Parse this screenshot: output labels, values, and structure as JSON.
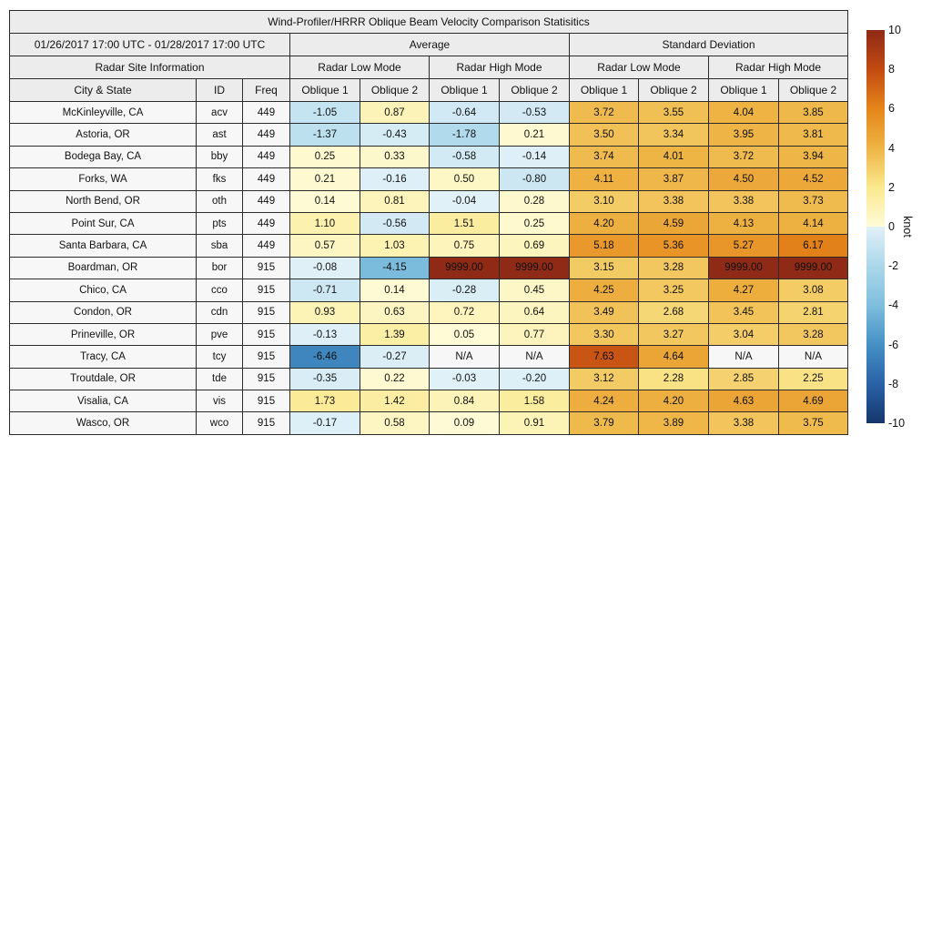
{
  "title": "Wind-Profiler/HRRR Oblique Beam Velocity Comparison Statisitics",
  "header": {
    "date_range": "01/26/2017 17:00 UTC - 01/28/2017 17:00 UTC",
    "group_average": "Average",
    "group_std": "Standard Deviation",
    "site_info": "Radar Site Information",
    "modes": [
      "Radar Low Mode",
      "Radar High Mode",
      "Radar Low Mode",
      "Radar High Mode"
    ],
    "col_headers": [
      "City & State",
      "ID",
      "Freq",
      "Oblique 1",
      "Oblique 2",
      "Oblique 1",
      "Oblique 2",
      "Oblique 1",
      "Oblique 2",
      "Oblique 1",
      "Oblique 2"
    ]
  },
  "chart_data": {
    "type": "heatmap",
    "title": "Wind-Profiler/HRRR Oblique Beam Velocity Comparison Statisitics",
    "value_columns": [
      "Average Radar Low Mode Oblique 1",
      "Average Radar Low Mode Oblique 2",
      "Average Radar High Mode Oblique 1",
      "Average Radar High Mode Oblique 2",
      "Std Dev Radar Low Mode Oblique 1",
      "Std Dev Radar Low Mode Oblique 2",
      "Std Dev Radar High Mode Oblique 1",
      "Std Dev Radar High Mode Oblique 2"
    ],
    "missing_label": "N/A",
    "rows": [
      {
        "city": "McKinleyville, CA",
        "id": "acv",
        "freq": "449",
        "values": [
          -1.05,
          0.87,
          -0.64,
          -0.53,
          3.72,
          3.55,
          4.04,
          3.85
        ]
      },
      {
        "city": "Astoria, OR",
        "id": "ast",
        "freq": "449",
        "values": [
          -1.37,
          -0.43,
          -1.78,
          0.21,
          3.5,
          3.34,
          3.95,
          3.81
        ]
      },
      {
        "city": "Bodega Bay, CA",
        "id": "bby",
        "freq": "449",
        "values": [
          0.25,
          0.33,
          -0.58,
          -0.14,
          3.74,
          4.01,
          3.72,
          3.94
        ]
      },
      {
        "city": "Forks, WA",
        "id": "fks",
        "freq": "449",
        "values": [
          0.21,
          -0.16,
          0.5,
          -0.8,
          4.11,
          3.87,
          4.5,
          4.52
        ]
      },
      {
        "city": "North Bend, OR",
        "id": "oth",
        "freq": "449",
        "values": [
          0.14,
          0.81,
          -0.04,
          0.28,
          3.1,
          3.38,
          3.38,
          3.73
        ]
      },
      {
        "city": "Point Sur, CA",
        "id": "pts",
        "freq": "449",
        "values": [
          1.1,
          -0.56,
          1.51,
          0.25,
          4.2,
          4.59,
          4.13,
          4.14
        ]
      },
      {
        "city": "Santa Barbara, CA",
        "id": "sba",
        "freq": "449",
        "values": [
          0.57,
          1.03,
          0.75,
          0.69,
          5.18,
          5.36,
          5.27,
          6.17
        ]
      },
      {
        "city": "Boardman, OR",
        "id": "bor",
        "freq": "915",
        "values": [
          -0.08,
          -4.15,
          9999.0,
          9999.0,
          3.15,
          3.28,
          9999.0,
          9999.0
        ]
      },
      {
        "city": "Chico, CA",
        "id": "cco",
        "freq": "915",
        "values": [
          -0.71,
          0.14,
          -0.28,
          0.45,
          4.25,
          3.25,
          4.27,
          3.08
        ]
      },
      {
        "city": "Condon, OR",
        "id": "cdn",
        "freq": "915",
        "values": [
          0.93,
          0.63,
          0.72,
          0.64,
          3.49,
          2.68,
          3.45,
          2.81
        ]
      },
      {
        "city": "Prineville, OR",
        "id": "pve",
        "freq": "915",
        "values": [
          -0.13,
          1.39,
          0.05,
          0.77,
          3.3,
          3.27,
          3.04,
          3.28
        ]
      },
      {
        "city": "Tracy, CA",
        "id": "tcy",
        "freq": "915",
        "values": [
          -6.46,
          -0.27,
          null,
          null,
          7.63,
          4.64,
          null,
          null
        ]
      },
      {
        "city": "Troutdale, OR",
        "id": "tde",
        "freq": "915",
        "values": [
          -0.35,
          0.22,
          -0.03,
          -0.2,
          3.12,
          2.28,
          2.85,
          2.25
        ]
      },
      {
        "city": "Visalia, CA",
        "id": "vis",
        "freq": "915",
        "values": [
          1.73,
          1.42,
          0.84,
          1.58,
          4.24,
          4.2,
          4.63,
          4.69
        ]
      },
      {
        "city": "Wasco, OR",
        "id": "wco",
        "freq": "915",
        "values": [
          -0.17,
          0.58,
          0.09,
          0.91,
          3.79,
          3.89,
          3.38,
          3.75
        ]
      }
    ]
  },
  "colorbar": {
    "label": "knot",
    "min": -10,
    "max": 10,
    "ticks": [
      10,
      8,
      6,
      4,
      2,
      0,
      -2,
      -4,
      -6,
      -8,
      -10
    ],
    "anchors": [
      {
        "value": 10,
        "color": "#8e2a15"
      },
      {
        "value": 8,
        "color": "#c24a12"
      },
      {
        "value": 6,
        "color": "#e5851a"
      },
      {
        "value": 4,
        "color": "#eeb444"
      },
      {
        "value": 2,
        "color": "#fae98e"
      },
      {
        "value": 0.001,
        "color": "#fefbd8"
      },
      {
        "value": -0.001,
        "color": "#e2f1f8"
      },
      {
        "value": -2,
        "color": "#abd8ea"
      },
      {
        "value": -4,
        "color": "#7fbedd"
      },
      {
        "value": -6,
        "color": "#4590c5"
      },
      {
        "value": -8,
        "color": "#2a62a6"
      },
      {
        "value": -10,
        "color": "#14366b"
      }
    ]
  },
  "colors": {
    "header_bg": "#ececec",
    "label_cell_bg": "#f7f7f7",
    "na_cell_bg": "#f7f7f7",
    "border": "#2b2b2b"
  }
}
